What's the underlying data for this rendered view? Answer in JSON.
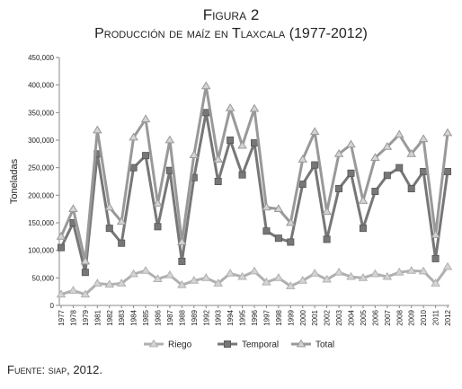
{
  "chart_data": {
    "type": "line",
    "title": "Figura 2",
    "subtitle": "Producción de maíz en Tlaxcala (1977-2012)",
    "y_label": "Toneladas",
    "source": "Fuente: siap, 2012.",
    "categories": [
      "1977",
      "1978",
      "1979",
      "1981",
      "1982",
      "1983",
      "1984",
      "1985",
      "1986",
      "1987",
      "1988",
      "1989",
      "1992",
      "1993",
      "1994",
      "1995",
      "1996",
      "1997",
      "1998",
      "1999",
      "2000",
      "2001",
      "2002",
      "2003",
      "2004",
      "2005",
      "2006",
      "2007",
      "2008",
      "2009",
      "2010",
      "2011",
      "2012"
    ],
    "series": [
      {
        "name": "Riego",
        "color": "#b0b0b0",
        "marker": "triangle",
        "values": [
          20000,
          27000,
          20000,
          40000,
          38000,
          40000,
          57000,
          63000,
          48000,
          55000,
          37000,
          45000,
          50000,
          40000,
          58000,
          52000,
          62000,
          42000,
          50000,
          35000,
          45000,
          58000,
          47000,
          60000,
          52000,
          50000,
          57000,
          52000,
          60000,
          63000,
          62000,
          40000,
          70000
        ]
      },
      {
        "name": "Temporal",
        "color": "#777777",
        "marker": "square",
        "values": [
          105000,
          150000,
          60000,
          275000,
          140000,
          113000,
          250000,
          272000,
          143000,
          245000,
          80000,
          232000,
          350000,
          225000,
          300000,
          237000,
          295000,
          135000,
          122000,
          115000,
          220000,
          255000,
          120000,
          212000,
          240000,
          140000,
          207000,
          236000,
          250000,
          212000,
          243000,
          85000,
          243000
        ]
      },
      {
        "name": "Total",
        "color": "#999999",
        "marker": "triangle",
        "values": [
          125000,
          175000,
          80000,
          318000,
          178000,
          152000,
          305000,
          338000,
          185000,
          300000,
          115000,
          273000,
          398000,
          265000,
          358000,
          290000,
          357000,
          178000,
          175000,
          150000,
          265000,
          315000,
          170000,
          275000,
          292000,
          190000,
          268000,
          288000,
          310000,
          275000,
          302000,
          128000,
          313000
        ]
      }
    ],
    "ylim": [
      0,
      450000
    ],
    "yticks": [
      0,
      {
        "value": 50000,
        "label": "50,000"
      },
      {
        "value": 100000,
        "label": "100,000"
      },
      {
        "value": 150000,
        "label": "150,000"
      },
      {
        "value": 200000,
        "label": "200,000"
      },
      {
        "value": 250000,
        "label": "250,000"
      },
      {
        "value": 300000,
        "label": "300,000"
      },
      {
        "value": 350000,
        "label": "350,000"
      },
      {
        "value": 400000,
        "label": "400,000"
      },
      {
        "value": 450000,
        "label": "450,000"
      }
    ],
    "grid": false,
    "legend": "bottom"
  }
}
